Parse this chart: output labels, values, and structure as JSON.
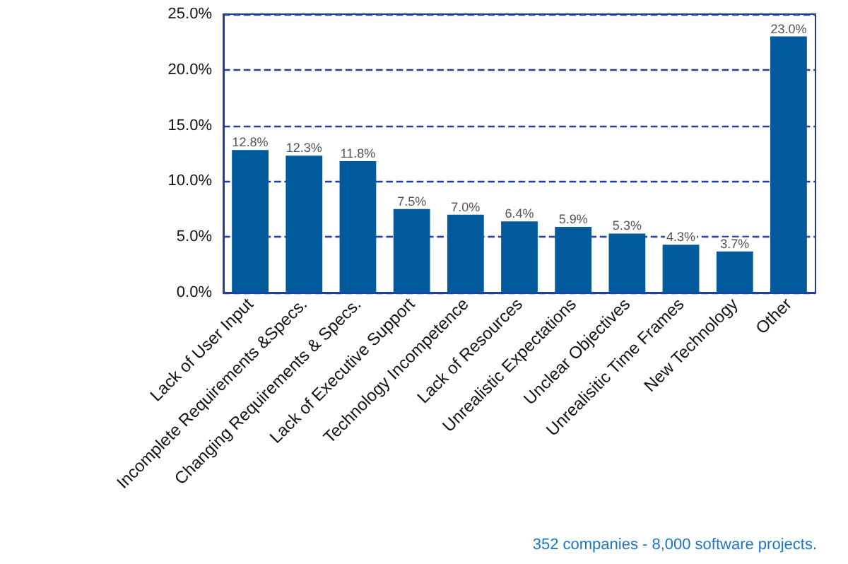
{
  "chart_data": {
    "type": "bar",
    "categories": [
      "Lack of User Input",
      "Incomplete Requirements &Specs.",
      "Changing Requirements & Specs.",
      "Lack of Executive Support",
      "Technology Incompetence",
      "Lack of Resources",
      "Unrealistic Expectations",
      "Unclear Objectives",
      "Unrealisitic Time Frames",
      "New Technology",
      "Other"
    ],
    "values": [
      12.8,
      12.3,
      11.8,
      7.5,
      7.0,
      6.4,
      5.9,
      5.3,
      4.3,
      3.7,
      23.0
    ],
    "value_labels": [
      "12.8%",
      "12.3%",
      "11.8%",
      "7.5%",
      "7.0%",
      "6.4%",
      "5.9%",
      "5.3%",
      "4.3%",
      "3.7%",
      "23.0%"
    ],
    "color": "#005a9c",
    "ylim": [
      0,
      25
    ],
    "yticks": [
      {
        "value": 0,
        "label": "0.0%"
      },
      {
        "value": 5,
        "label": "5.0%"
      },
      {
        "value": 10,
        "label": "10.0%"
      },
      {
        "value": 15,
        "label": "15.0%"
      },
      {
        "value": 20,
        "label": "20.0%"
      },
      {
        "value": 25,
        "label": "25.0%"
      }
    ],
    "grid": "y",
    "annotations": [
      "352 companies - 8,000 software projects."
    ]
  }
}
